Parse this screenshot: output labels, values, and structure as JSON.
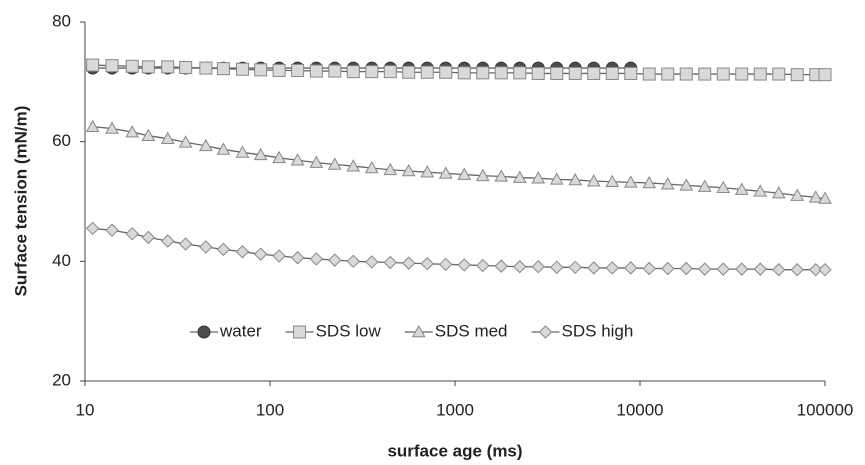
{
  "chart_data": {
    "type": "line",
    "x_label": "surface age (ms)",
    "y_label": "Surface tension (mN/m)",
    "xscale": "log",
    "grid": false,
    "legend": "bottom",
    "xlim": [
      10,
      100000
    ],
    "xticks": [
      10,
      100,
      1000,
      10000,
      100000
    ],
    "ylim": [
      20,
      80
    ],
    "yticks": [
      20,
      40,
      60,
      80
    ],
    "x": [
      11,
      14,
      18,
      22,
      28,
      35,
      45,
      56,
      71,
      89,
      112,
      141,
      178,
      224,
      282,
      355,
      447,
      562,
      708,
      891,
      1122,
      1413,
      1778,
      2239,
      2818,
      3548,
      4467,
      5623,
      7079,
      8913,
      11220,
      14125,
      17783,
      22387,
      28184,
      35481,
      44668,
      56234,
      70795,
      89125,
      100000
    ],
    "series": [
      {
        "name": "water",
        "color": "#4d4d4d",
        "marker": "circle",
        "values": [
          72.3,
          72.3,
          72.3,
          72.3,
          72.3,
          72.3,
          72.3,
          72.3,
          72.3,
          72.3,
          72.3,
          72.3,
          72.3,
          72.3,
          72.3,
          72.3,
          72.3,
          72.3,
          72.3,
          72.3,
          72.3,
          72.3,
          72.3,
          72.3,
          72.3,
          72.3,
          72.3,
          72.3,
          72.3,
          72.3,
          null,
          null,
          null,
          null,
          null,
          null,
          null,
          null,
          null,
          null,
          null
        ]
      },
      {
        "name": "SDS low",
        "color": "#d9d9d9",
        "marker": "square",
        "values": [
          72.8,
          72.7,
          72.6,
          72.5,
          72.5,
          72.4,
          72.3,
          72.2,
          72.1,
          72.0,
          71.9,
          71.9,
          71.8,
          71.8,
          71.7,
          71.7,
          71.7,
          71.6,
          71.6,
          71.6,
          71.5,
          71.5,
          71.5,
          71.5,
          71.4,
          71.4,
          71.4,
          71.4,
          71.4,
          71.4,
          71.3,
          71.3,
          71.3,
          71.3,
          71.3,
          71.3,
          71.3,
          71.3,
          71.2,
          71.2,
          71.2
        ]
      },
      {
        "name": "SDS med",
        "color": "#d9d9d9",
        "marker": "triangle",
        "values": [
          62.5,
          62.2,
          61.6,
          61.0,
          60.5,
          59.9,
          59.3,
          58.7,
          58.2,
          57.8,
          57.3,
          56.9,
          56.5,
          56.2,
          55.9,
          55.6,
          55.3,
          55.1,
          54.9,
          54.7,
          54.5,
          54.3,
          54.2,
          54.0,
          53.9,
          53.7,
          53.6,
          53.4,
          53.3,
          53.2,
          53.1,
          52.9,
          52.7,
          52.5,
          52.3,
          52.0,
          51.7,
          51.4,
          51.0,
          50.7,
          50.5
        ]
      },
      {
        "name": "SDS high",
        "color": "#d9d9d9",
        "marker": "diamond",
        "values": [
          45.5,
          45.2,
          44.6,
          44.0,
          43.4,
          42.9,
          42.4,
          42.0,
          41.6,
          41.2,
          40.9,
          40.6,
          40.4,
          40.2,
          40.0,
          39.9,
          39.8,
          39.7,
          39.6,
          39.5,
          39.4,
          39.3,
          39.2,
          39.1,
          39.1,
          39.0,
          39.0,
          38.9,
          38.9,
          38.9,
          38.8,
          38.8,
          38.8,
          38.7,
          38.7,
          38.7,
          38.7,
          38.6,
          38.6,
          38.6,
          38.6
        ]
      }
    ]
  }
}
